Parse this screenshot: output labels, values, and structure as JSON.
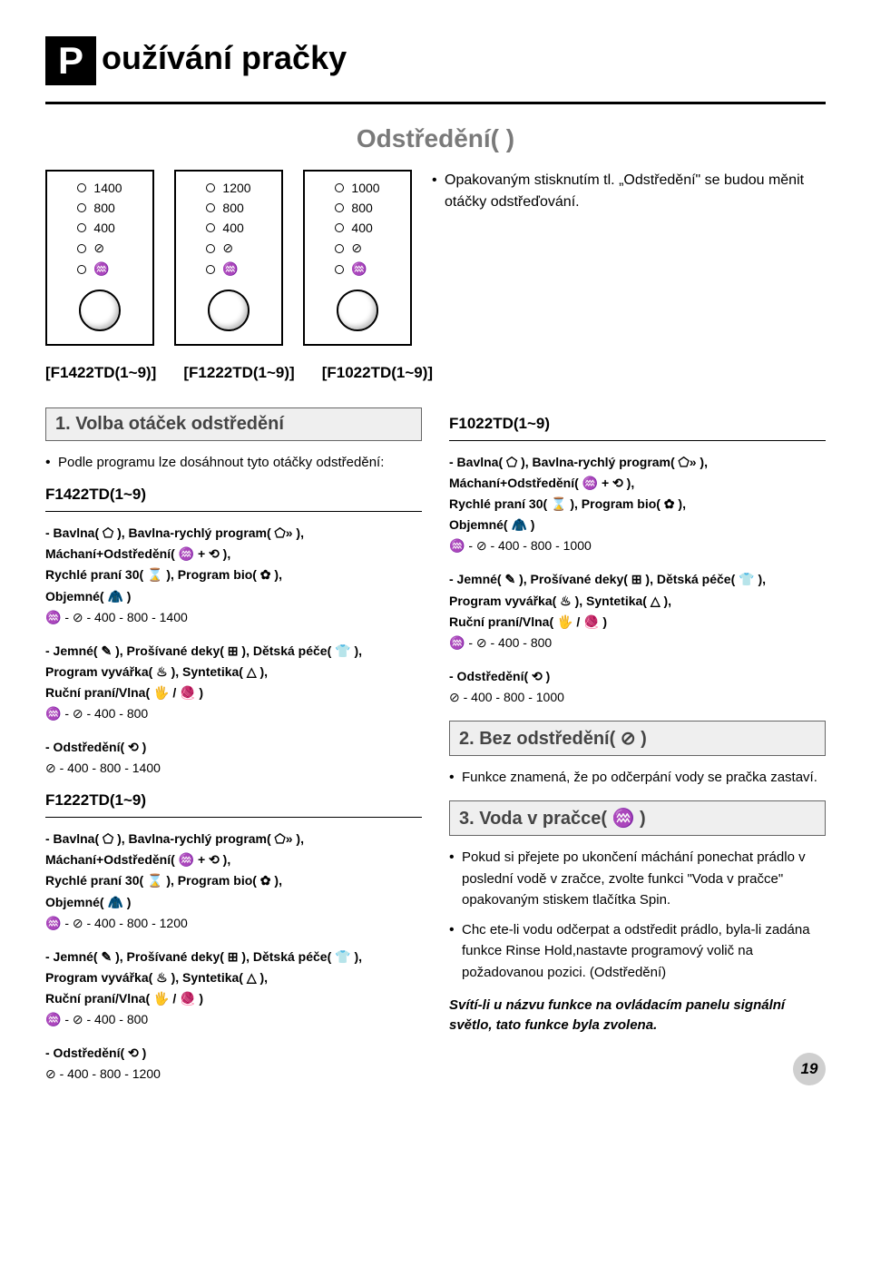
{
  "title": {
    "badge": "P",
    "text": "oužívání pračky"
  },
  "section_heading": "Odstředění(   )",
  "panels": [
    {
      "values": [
        "1400",
        "800",
        "400"
      ]
    },
    {
      "values": [
        "1200",
        "800",
        "400"
      ]
    },
    {
      "values": [
        "1000",
        "800",
        "400"
      ]
    }
  ],
  "panel_note": "Opakovaným stisknutím tl. „Odstředění\" se budou měnit otáčky odstřeďování.",
  "models": [
    "[F1422TD(1~9)]",
    "[F1222TD(1~9)]",
    "[F1022TD(1~9)]"
  ],
  "left": {
    "step_title": "1. Volba otáček odstředění",
    "intro": "Podle programu lze dosáhnout tyto otáčky odstředění:",
    "g1422": {
      "head": "F1422TD(1~9)",
      "b1": {
        "l1": "- Bavlna( ⬠ ), Bavlna-rychlý program( ⬠» ),",
        "l2": "Máchaní+Odstředění( ♒ + ⟲ ),",
        "l3": "Rychlé praní 30( ⌛ ), Program bio( ✿ ),",
        "l4": "Objemné( 🧥 )",
        "l5": "♒  -  ⊘  - 400 - 800 - 1400"
      },
      "b2": {
        "l1": "- Jemné( ✎ ), Prošívané deky( ⊞ ), Dětská péče( 👕 ),",
        "l2": "Program vyvářka( ♨ ), Syntetika( △ ),",
        "l3": "Ruční praní/Vlna( 🖐 / 🧶 )",
        "l4": "♒  -  ⊘  - 400 - 800"
      },
      "b3": {
        "l1": "- Odstředění( ⟲ )",
        "l2": "⊘ - 400 - 800 - 1400"
      }
    },
    "g1222": {
      "head": "F1222TD(1~9)",
      "b1": {
        "l1": "- Bavlna( ⬠ ), Bavlna-rychlý program( ⬠» ),",
        "l2": "Máchaní+Odstředění( ♒ + ⟲ ),",
        "l3": "Rychlé praní 30( ⌛ ), Program bio( ✿ ),",
        "l4": "Objemné( 🧥 )",
        "l5": "♒  -  ⊘  - 400 - 800 - 1200"
      },
      "b2": {
        "l1": "- Jemné( ✎ ), Prošívané deky( ⊞ ), Dětská péče( 👕 ),",
        "l2": "Program vyvářka( ♨ ), Syntetika( △ ),",
        "l3": "Ruční praní/Vlna( 🖐 / 🧶 )",
        "l4": "♒  -  ⊘  - 400 - 800"
      },
      "b3": {
        "l1": "- Odstředění( ⟲ )",
        "l2": "⊘ - 400 - 800 - 1200"
      }
    }
  },
  "right": {
    "g1022": {
      "head": "F1022TD(1~9)",
      "b1": {
        "l1": "- Bavlna( ⬠ ), Bavlna-rychlý program( ⬠» ),",
        "l2": "Máchaní+Odstředění( ♒ + ⟲ ),",
        "l3": "Rychlé praní 30( ⌛ ), Program bio( ✿ ),",
        "l4": "Objemné( 🧥 )",
        "l5": "♒  -  ⊘  - 400 - 800 - 1000"
      },
      "b2": {
        "l1": "- Jemné( ✎ ), Prošívané deky( ⊞ ), Dětská péče( 👕 ),",
        "l2": "Program vyvářka( ♨ ), Syntetika( △ ),",
        "l3": "Ruční praní/Vlna( 🖐 / 🧶 )",
        "l4": "♒  -  ⊘  - 400 - 800"
      },
      "b3": {
        "l1": "- Odstředění( ⟲ )",
        "l2": "⊘ - 400 - 800 - 1000"
      }
    },
    "step2_title": "2. Bez odstředění( ⊘ )",
    "step2_bullet": "Funkce znamená, že po odčerpání vody se pračka zastaví.",
    "step3_title": "3. Voda v pračce( ♒ )",
    "step3_bullets": [
      "Pokud si přejete po ukončení máchání ponechat prádlo v poslední vodě v zračce, zvolte funkci \"Voda v pračce\" opakovaným stiskem tlačítka Spin.",
      "Chc ete-li vodu odčerpat a odstředit prádlo, byla-li zadána funkce Rinse Hold,nastavte programový volič na požadovanou pozici. (Odstředění)"
    ],
    "footer": "Svítí-li u názvu  funkce na ovládacím panelu signální světlo, tato funkce byla zvolena."
  },
  "page_number": "19"
}
